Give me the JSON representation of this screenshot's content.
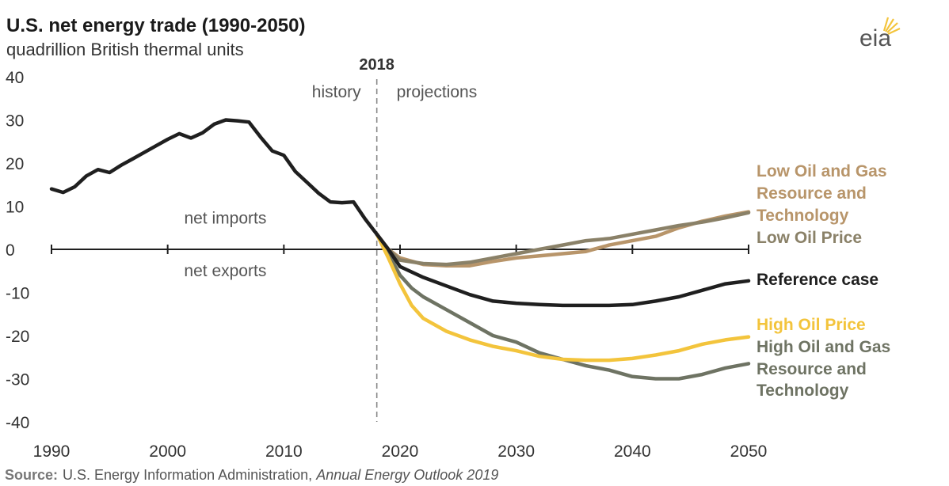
{
  "chart_data": {
    "type": "line",
    "title": "U.S. net energy trade (1990-2050)",
    "subtitle": "quadrillion British thermal units",
    "xlim": [
      1990,
      2050
    ],
    "ylim": [
      -40,
      40
    ],
    "x_ticks": [
      "1990",
      "2000",
      "2010",
      "2020",
      "2030",
      "2040",
      "2050"
    ],
    "y_ticks": [
      "40",
      "30",
      "20",
      "10",
      "0",
      "-10",
      "-20",
      "-30",
      "-40"
    ],
    "divider": {
      "year": 2018,
      "label": "2018",
      "left_label": "history",
      "right_label": "projections"
    },
    "annotations": {
      "above_zero": "net imports",
      "below_zero": "net exports"
    },
    "series": [
      {
        "name": "history",
        "color": "#1f1f1f",
        "x": [
          1990,
          1991,
          1992,
          1993,
          1994,
          1995,
          1996,
          1997,
          1998,
          1999,
          2000,
          2001,
          2002,
          2003,
          2004,
          2005,
          2006,
          2007,
          2008,
          2009,
          2010,
          2011,
          2012,
          2013,
          2014,
          2015,
          2016,
          2017,
          2018
        ],
        "y": [
          14,
          13.2,
          14.5,
          17,
          18.5,
          17.8,
          19.5,
          21,
          22.5,
          24,
          25.5,
          26.8,
          25.8,
          27,
          29,
          30,
          29.8,
          29.5,
          26,
          22.8,
          21.8,
          18,
          15.5,
          13,
          11,
          10.8,
          11,
          7,
          3.5
        ]
      },
      {
        "name": "Low Oil and Gas Resource and Technology",
        "color": "#b8956a",
        "x": [
          2018,
          2019,
          2020,
          2022,
          2024,
          2026,
          2028,
          2030,
          2032,
          2034,
          2036,
          2038,
          2040,
          2042,
          2044,
          2046,
          2048,
          2050
        ],
        "y": [
          3.5,
          0,
          -2,
          -3.5,
          -3.8,
          -3.8,
          -2.8,
          -2,
          -1.5,
          -1,
          -0.5,
          1,
          2,
          3,
          5,
          6.5,
          7.7,
          8.7
        ]
      },
      {
        "name": "Low Oil Price",
        "color": "#8a8168",
        "x": [
          2018,
          2019,
          2020,
          2022,
          2024,
          2026,
          2028,
          2030,
          2032,
          2034,
          2036,
          2038,
          2040,
          2042,
          2044,
          2046,
          2048,
          2050
        ],
        "y": [
          3.5,
          0,
          -2.5,
          -3.3,
          -3.5,
          -3,
          -2,
          -1,
          0,
          1,
          2,
          2.5,
          3.5,
          4.5,
          5.5,
          6.3,
          7.3,
          8.5
        ]
      },
      {
        "name": "Reference case",
        "color": "#1f1f1f",
        "x": [
          2018,
          2019,
          2020,
          2022,
          2024,
          2026,
          2028,
          2030,
          2032,
          2034,
          2036,
          2038,
          2040,
          2042,
          2044,
          2046,
          2048,
          2050
        ],
        "y": [
          3.5,
          0,
          -4,
          -6.5,
          -8.5,
          -10.5,
          -12,
          -12.5,
          -12.8,
          -13,
          -13,
          -13,
          -12.8,
          -12,
          -11,
          -9.5,
          -8,
          -7.3
        ]
      },
      {
        "name": "High Oil Price",
        "color": "#f3c43c",
        "x": [
          2018,
          2019,
          2020,
          2021,
          2022,
          2024,
          2026,
          2028,
          2030,
          2032,
          2034,
          2036,
          2038,
          2040,
          2042,
          2044,
          2046,
          2048,
          2050
        ],
        "y": [
          3.5,
          -2,
          -8,
          -13,
          -16,
          -19,
          -21,
          -22.5,
          -23.5,
          -24.8,
          -25.5,
          -25.7,
          -25.7,
          -25.3,
          -24.5,
          -23.5,
          -22,
          -21,
          -20.3
        ]
      },
      {
        "name": "High Oil and Gas Resource and Technology",
        "color": "#6e7363",
        "x": [
          2018,
          2019,
          2020,
          2021,
          2022,
          2024,
          2026,
          2028,
          2030,
          2032,
          2034,
          2036,
          2038,
          2040,
          2042,
          2044,
          2046,
          2048,
          2050
        ],
        "y": [
          3.5,
          -1,
          -6,
          -9,
          -11,
          -14,
          -17,
          -20,
          -21.5,
          -24,
          -25.5,
          -27,
          -28,
          -29.5,
          -30,
          -30,
          -29,
          -27.5,
          -26.5
        ]
      }
    ],
    "legend": [
      {
        "text": "Low Oil and Gas",
        "color": "#b8956a"
      },
      {
        "text": "Resource and",
        "color": "#b8956a"
      },
      {
        "text": "Technology",
        "color": "#b8956a"
      },
      {
        "text": "Low Oil Price",
        "color": "#8a8168"
      },
      {
        "text": "Reference case",
        "color": "#1f1f1f"
      },
      {
        "text": "High Oil Price",
        "color": "#f3c43c"
      },
      {
        "text": "High Oil and Gas",
        "color": "#6e7363"
      },
      {
        "text": "Resource and",
        "color": "#6e7363"
      },
      {
        "text": "Technology",
        "color": "#6e7363"
      }
    ]
  },
  "logo": {
    "text": "eia",
    "icon": "sun-rays-icon"
  },
  "source": {
    "label": "Source:",
    "text": "U.S. Energy Information Administration, ",
    "italic": "Annual Energy Outlook 2019"
  }
}
